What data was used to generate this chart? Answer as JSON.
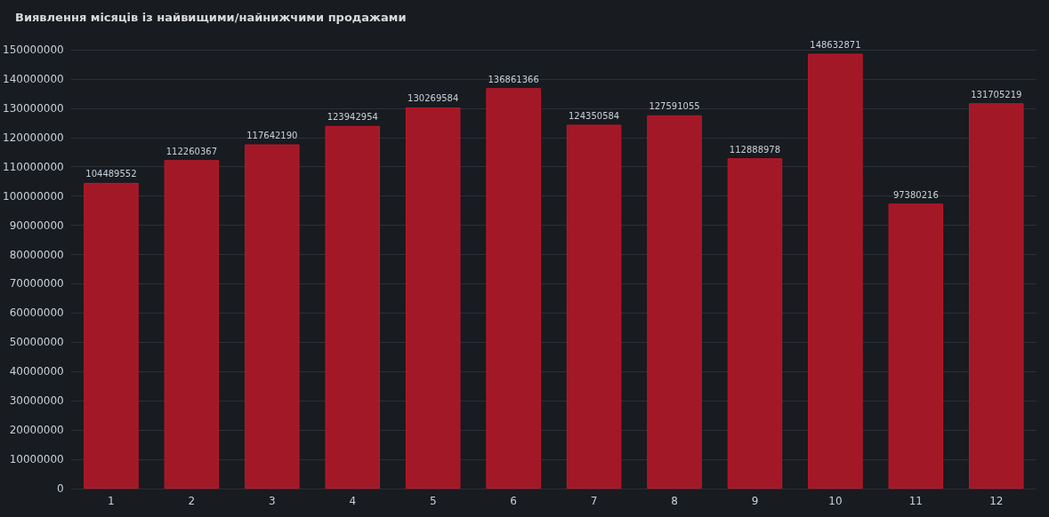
{
  "chart_data": {
    "type": "bar",
    "title": "Виявлення місяців із найвищими/найнижчими продажами",
    "categories": [
      "1",
      "2",
      "3",
      "4",
      "5",
      "6",
      "7",
      "8",
      "9",
      "10",
      "11",
      "12"
    ],
    "values": [
      104489552,
      112260367,
      117642190,
      123942954,
      130269584,
      136861366,
      124350584,
      127591055,
      112888978,
      148632871,
      97380216,
      131705219
    ],
    "color": "#a21827",
    "ylim": [
      0,
      150000000
    ],
    "yticks": [
      0,
      10000000,
      20000000,
      30000000,
      40000000,
      50000000,
      60000000,
      70000000,
      80000000,
      90000000,
      100000000,
      110000000,
      120000000,
      130000000,
      140000000,
      150000000
    ],
    "grid": "y",
    "data_labels": true
  }
}
